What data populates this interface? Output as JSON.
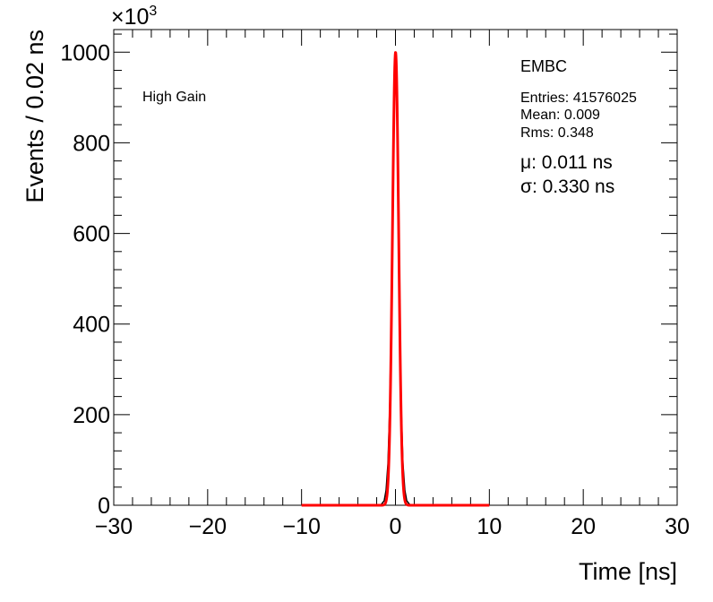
{
  "chart_data": {
    "type": "line",
    "xlabel": "Time [ns]",
    "ylabel": "Events / 0.02 ns",
    "xlim": [
      -30,
      30
    ],
    "ylim": [
      0,
      1050
    ],
    "y_scale_factor_label": "×10",
    "y_scale_factor_exponent": "3",
    "x_ticks": [
      -30,
      -20,
      -10,
      0,
      10,
      20,
      30
    ],
    "x_tick_labels": [
      "−30",
      "−20",
      "−10",
      "0",
      "10",
      "20",
      "30"
    ],
    "y_ticks": [
      0,
      200,
      400,
      600,
      800,
      1000
    ],
    "y_tick_labels": [
      "0",
      "200",
      "400",
      "600",
      "800",
      "1000"
    ],
    "grid": false,
    "annotations": {
      "gain_label": "High Gain",
      "region_label": "EMBC",
      "entries": "Entries: 41576025",
      "mean": "Mean: 0.009",
      "rms": "Rms: 0.348",
      "mu": "μ: 0.011 ns",
      "sigma": "σ: 0.330 ns"
    },
    "series": [
      {
        "type": "histogram",
        "color": "#000000",
        "x": [
          -1.5,
          -1.2,
          -1.0,
          -0.8,
          -0.6,
          -0.4,
          -0.2,
          0.0,
          0.2,
          0.4,
          0.6,
          0.8,
          1.0,
          1.2,
          1.5
        ],
        "values": [
          2,
          10,
          33,
          92,
          225,
          480,
          830,
          1000,
          830,
          480,
          225,
          92,
          33,
          10,
          2
        ]
      },
      {
        "type": "fit",
        "color": "#ff0000",
        "x_range": [
          -10,
          10
        ],
        "mean": 0.011,
        "sigma": 0.33,
        "amplitude": 1000
      }
    ]
  }
}
